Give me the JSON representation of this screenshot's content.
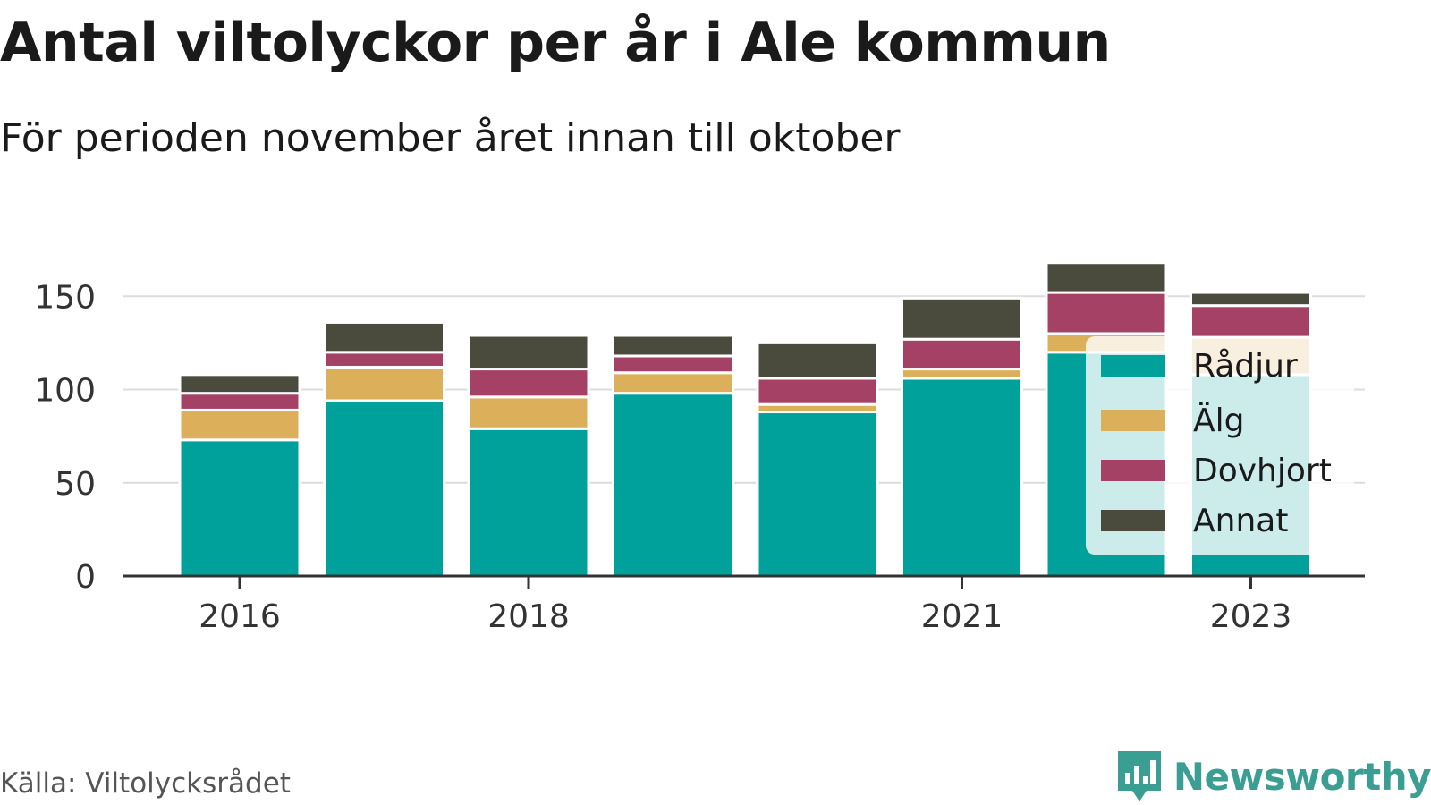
{
  "header": {
    "title": "Antal viltolyckor per år i Ale kommun",
    "subtitle": "För perioden november året innan till oktober"
  },
  "footer": {
    "source": "Källa: Viltolycksrådet",
    "brand": "Newsworthy",
    "brand_icon": "newsworthy-logo-icon",
    "brand_color": "#3a9e93"
  },
  "chart_data": {
    "type": "bar",
    "stacked": true,
    "categories": [
      "2016",
      "2017",
      "2018",
      "2019",
      "2020",
      "2021",
      "2022",
      "2023"
    ],
    "x_tick_labels": [
      "2016",
      "2018",
      "2021",
      "2023"
    ],
    "y_ticks": [
      "0",
      "50",
      "100",
      "150"
    ],
    "ylim": [
      0,
      170
    ],
    "grid": true,
    "legend_position": "right-inside",
    "series": [
      {
        "name": "Rådjur",
        "color": "#00a19a",
        "values": [
          73,
          94,
          79,
          98,
          88,
          106,
          120,
          108
        ]
      },
      {
        "name": "Älg",
        "color": "#dcaf5b",
        "values": [
          16,
          18,
          17,
          11,
          4,
          5,
          10,
          20
        ]
      },
      {
        "name": "Dovhjort",
        "color": "#a64166",
        "values": [
          9,
          8,
          15,
          9,
          14,
          16,
          22,
          17
        ]
      },
      {
        "name": "Annat",
        "color": "#4a4a3d",
        "values": [
          10,
          16,
          18,
          11,
          19,
          22,
          16,
          7
        ]
      }
    ]
  }
}
